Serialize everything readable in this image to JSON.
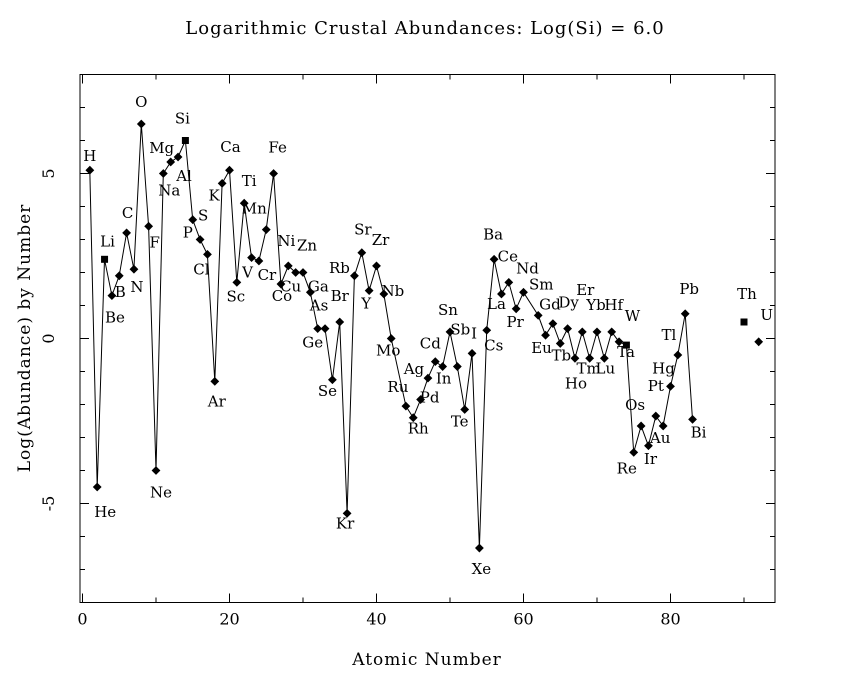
{
  "chart_data": {
    "type": "scatter",
    "title": "Logarithmic Crustal Abundances: Log(Si) = 6.0",
    "xlabel": "Atomic Number",
    "ylabel": "Log(Abundance) by Number",
    "xlim": [
      0,
      94
    ],
    "ylim": [
      -8,
      8
    ],
    "x_major_ticks": [
      0,
      20,
      40,
      60,
      80
    ],
    "x_minor_ticks": [
      10,
      30,
      50,
      70,
      90
    ],
    "y_major_ticks": [
      -5,
      0,
      5
    ],
    "y_minor_step": 1,
    "grid": false,
    "legend": "none",
    "marker_color": "#000000",
    "line_color": "#000000",
    "background": "#ffffff",
    "points": [
      {
        "sym": "H",
        "z": 1,
        "v": 5.1,
        "marker": "diamond",
        "label_offset": [
          0,
          -9
        ],
        "connected": true
      },
      {
        "sym": "He",
        "z": 2,
        "v": -4.5,
        "marker": "diamond",
        "label_offset": [
          8,
          30
        ],
        "connected": true
      },
      {
        "sym": "Li",
        "z": 3,
        "v": 2.4,
        "marker": "square",
        "label_offset": [
          3,
          -13
        ],
        "connected": true
      },
      {
        "sym": "Be",
        "z": 4,
        "v": 1.3,
        "marker": "diamond",
        "label_offset": [
          3,
          27
        ],
        "connected": true
      },
      {
        "sym": "B",
        "z": 5,
        "v": 1.9,
        "marker": "diamond",
        "label_offset": [
          1,
          21
        ],
        "connected": true
      },
      {
        "sym": "C",
        "z": 6,
        "v": 3.2,
        "marker": "diamond",
        "label_offset": [
          1,
          -15
        ],
        "connected": true
      },
      {
        "sym": "N",
        "z": 7,
        "v": 2.1,
        "marker": "diamond",
        "label_offset": [
          3,
          23
        ],
        "connected": true
      },
      {
        "sym": "O",
        "z": 8,
        "v": 6.5,
        "marker": "diamond",
        "label_offset": [
          0,
          -17
        ],
        "connected": true
      },
      {
        "sym": "F",
        "z": 9,
        "v": 3.4,
        "marker": "diamond",
        "label_offset": [
          6,
          21
        ],
        "connected": true
      },
      {
        "sym": "Ne",
        "z": 10,
        "v": -4.0,
        "marker": "diamond",
        "label_offset": [
          5,
          27
        ],
        "connected": true
      },
      {
        "sym": "Na",
        "z": 11,
        "v": 5.0,
        "marker": "diamond",
        "label_offset": [
          6,
          22
        ],
        "connected": true
      },
      {
        "sym": "Mg",
        "z": 12,
        "v": 5.35,
        "marker": "diamond",
        "label_offset": [
          -9,
          -9
        ],
        "connected": true
      },
      {
        "sym": "Al",
        "z": 13,
        "v": 5.5,
        "marker": "diamond",
        "label_offset": [
          6,
          24
        ],
        "connected": true
      },
      {
        "sym": "Si",
        "z": 14,
        "v": 6.0,
        "marker": "square",
        "label_offset": [
          -3,
          -17
        ],
        "connected": true
      },
      {
        "sym": "P",
        "z": 15,
        "v": 3.6,
        "marker": "diamond",
        "label_offset": [
          -5,
          18
        ],
        "connected": true
      },
      {
        "sym": "S",
        "z": 16,
        "v": 3.0,
        "marker": "diamond",
        "label_offset": [
          3,
          -19
        ],
        "connected": true
      },
      {
        "sym": "Cl",
        "z": 17,
        "v": 2.55,
        "marker": "diamond",
        "label_offset": [
          -6,
          20
        ],
        "connected": true
      },
      {
        "sym": "Ar",
        "z": 18,
        "v": -1.3,
        "marker": "diamond",
        "label_offset": [
          2,
          25
        ],
        "connected": true
      },
      {
        "sym": "K",
        "z": 19,
        "v": 4.7,
        "marker": "diamond",
        "label_offset": [
          -8,
          17
        ],
        "connected": true
      },
      {
        "sym": "Ca",
        "z": 20,
        "v": 5.1,
        "marker": "diamond",
        "label_offset": [
          1,
          -18
        ],
        "connected": true
      },
      {
        "sym": "Sc",
        "z": 21,
        "v": 1.7,
        "marker": "diamond",
        "label_offset": [
          -1,
          19
        ],
        "connected": true
      },
      {
        "sym": "Ti",
        "z": 22,
        "v": 4.1,
        "marker": "diamond",
        "label_offset": [
          5,
          -17
        ],
        "connected": true
      },
      {
        "sym": "V",
        "z": 23,
        "v": 2.45,
        "marker": "diamond",
        "label_offset": [
          -4,
          20
        ],
        "connected": true
      },
      {
        "sym": "Cr",
        "z": 24,
        "v": 2.35,
        "marker": "diamond",
        "label_offset": [
          8,
          19
        ],
        "connected": true
      },
      {
        "sym": "Mn",
        "z": 25,
        "v": 3.3,
        "marker": "diamond",
        "label_offset": [
          -12,
          -16
        ],
        "connected": true
      },
      {
        "sym": "Fe",
        "z": 26,
        "v": 5.0,
        "marker": "diamond",
        "label_offset": [
          4,
          -21
        ],
        "connected": true
      },
      {
        "sym": "Co",
        "z": 27,
        "v": 1.65,
        "marker": "diamond",
        "label_offset": [
          1,
          17
        ],
        "connected": true
      },
      {
        "sym": "Ni",
        "z": 28,
        "v": 2.2,
        "marker": "diamond",
        "label_offset": [
          -2,
          -20
        ],
        "connected": true
      },
      {
        "sym": "Cu",
        "z": 29,
        "v": 2.0,
        "marker": "diamond",
        "label_offset": [
          -5,
          19
        ],
        "connected": true
      },
      {
        "sym": "Zn",
        "z": 30,
        "v": 2.0,
        "marker": "diamond",
        "label_offset": [
          4,
          -22
        ],
        "connected": true
      },
      {
        "sym": "Ga",
        "z": 31,
        "v": 1.4,
        "marker": "diamond",
        "label_offset": [
          8,
          -1
        ],
        "connected": true
      },
      {
        "sym": "Ge",
        "z": 32,
        "v": 0.3,
        "marker": "diamond",
        "label_offset": [
          -5,
          19
        ],
        "connected": true
      },
      {
        "sym": "As",
        "z": 33,
        "v": 0.3,
        "marker": "diamond",
        "label_offset": [
          -6,
          -18
        ],
        "connected": true
      },
      {
        "sym": "Se",
        "z": 34,
        "v": -1.25,
        "marker": "diamond",
        "label_offset": [
          -5,
          16
        ],
        "connected": true
      },
      {
        "sym": "Br",
        "z": 35,
        "v": 0.5,
        "marker": "diamond",
        "label_offset": [
          0,
          -21
        ],
        "connected": true
      },
      {
        "sym": "Kr",
        "z": 36,
        "v": -5.3,
        "marker": "diamond",
        "label_offset": [
          -2,
          15
        ],
        "connected": true
      },
      {
        "sym": "Rb",
        "z": 37,
        "v": 1.9,
        "marker": "diamond",
        "label_offset": [
          -15,
          -3
        ],
        "connected": true
      },
      {
        "sym": "Sr",
        "z": 38,
        "v": 2.6,
        "marker": "diamond",
        "label_offset": [
          1,
          -18
        ],
        "connected": true
      },
      {
        "sym": "Y",
        "z": 39,
        "v": 1.45,
        "marker": "diamond",
        "label_offset": [
          -3,
          18
        ],
        "connected": true
      },
      {
        "sym": "Zr",
        "z": 40,
        "v": 2.2,
        "marker": "diamond",
        "label_offset": [
          4,
          -21
        ],
        "connected": true
      },
      {
        "sym": "Nb",
        "z": 41,
        "v": 1.35,
        "marker": "diamond",
        "label_offset": [
          9,
          2
        ],
        "connected": true
      },
      {
        "sym": "Mo",
        "z": 42,
        "v": 0.0,
        "marker": "diamond",
        "label_offset": [
          -3,
          17
        ],
        "connected": true
      },
      {
        "sym": "Ru",
        "z": 44,
        "v": -2.05,
        "marker": "diamond",
        "label_offset": [
          -8,
          -14
        ],
        "connected": true
      },
      {
        "sym": "Rh",
        "z": 45,
        "v": -2.4,
        "marker": "diamond",
        "label_offset": [
          5,
          16
        ],
        "connected": true
      },
      {
        "sym": "Pd",
        "z": 46,
        "v": -1.85,
        "marker": "diamond",
        "label_offset": [
          9,
          3
        ],
        "connected": true
      },
      {
        "sym": "Ag",
        "z": 47,
        "v": -1.2,
        "marker": "diamond",
        "label_offset": [
          -14,
          -4
        ],
        "connected": true
      },
      {
        "sym": "Cd",
        "z": 48,
        "v": -0.7,
        "marker": "diamond",
        "label_offset": [
          -5,
          -13
        ],
        "connected": true
      },
      {
        "sym": "In",
        "z": 49,
        "v": -0.85,
        "marker": "diamond",
        "label_offset": [
          1,
          17
        ],
        "connected": true
      },
      {
        "sym": "Sn",
        "z": 50,
        "v": 0.2,
        "marker": "diamond",
        "label_offset": [
          -2,
          -17
        ],
        "connected": true
      },
      {
        "sym": "Sb",
        "z": 51,
        "v": -0.85,
        "marker": "diamond",
        "label_offset": [
          3,
          -32
        ],
        "connected": true
      },
      {
        "sym": "Te",
        "z": 52,
        "v": -2.15,
        "marker": "diamond",
        "label_offset": [
          -5,
          17
        ],
        "connected": true
      },
      {
        "sym": "I",
        "z": 53,
        "v": -0.45,
        "marker": "diamond",
        "label_offset": [
          2,
          -15
        ],
        "connected": true
      },
      {
        "sym": "Xe",
        "z": 54,
        "v": -6.35,
        "marker": "diamond",
        "label_offset": [
          2,
          26
        ],
        "connected": true
      },
      {
        "sym": "Cs",
        "z": 55,
        "v": 0.25,
        "marker": "diamond",
        "label_offset": [
          7,
          20
        ],
        "connected": true
      },
      {
        "sym": "Ba",
        "z": 56,
        "v": 2.4,
        "marker": "diamond",
        "label_offset": [
          -1,
          -20
        ],
        "connected": true
      },
      {
        "sym": "La",
        "z": 57,
        "v": 1.35,
        "marker": "diamond",
        "label_offset": [
          -5,
          15
        ],
        "connected": true
      },
      {
        "sym": "Ce",
        "z": 58,
        "v": 1.7,
        "marker": "diamond",
        "label_offset": [
          -1,
          -21
        ],
        "connected": true
      },
      {
        "sym": "Pr",
        "z": 59,
        "v": 0.9,
        "marker": "diamond",
        "label_offset": [
          -1,
          18
        ],
        "connected": true
      },
      {
        "sym": "Nd",
        "z": 60,
        "v": 1.4,
        "marker": "diamond",
        "label_offset": [
          4,
          -19
        ],
        "connected": true
      },
      {
        "sym": "Sm",
        "z": 62,
        "v": 0.7,
        "marker": "diamond",
        "label_offset": [
          3,
          -26
        ],
        "connected": true
      },
      {
        "sym": "Eu",
        "z": 63,
        "v": 0.1,
        "marker": "diamond",
        "label_offset": [
          -4,
          18
        ],
        "connected": true
      },
      {
        "sym": "Gd",
        "z": 64,
        "v": 0.45,
        "marker": "diamond",
        "label_offset": [
          -3,
          -14
        ],
        "connected": true
      },
      {
        "sym": "Tb",
        "z": 65,
        "v": -0.15,
        "marker": "diamond",
        "label_offset": [
          1,
          17
        ],
        "connected": true
      },
      {
        "sym": "Dy",
        "z": 66,
        "v": 0.3,
        "marker": "diamond",
        "label_offset": [
          1,
          -21
        ],
        "connected": true
      },
      {
        "sym": "Ho",
        "z": 67,
        "v": -0.6,
        "marker": "diamond",
        "label_offset": [
          1,
          30
        ],
        "connected": true
      },
      {
        "sym": "Er",
        "z": 68,
        "v": 0.2,
        "marker": "diamond",
        "label_offset": [
          3,
          -37
        ],
        "connected": true
      },
      {
        "sym": "Tm",
        "z": 69,
        "v": -0.6,
        "marker": "diamond",
        "label_offset": [
          -1,
          15
        ],
        "connected": true
      },
      {
        "sym": "Yb",
        "z": 70,
        "v": 0.2,
        "marker": "diamond",
        "label_offset": [
          -1,
          -22
        ],
        "connected": true
      },
      {
        "sym": "Lu",
        "z": 71,
        "v": -0.6,
        "marker": "diamond",
        "label_offset": [
          1,
          15
        ],
        "connected": true
      },
      {
        "sym": "Hf",
        "z": 72,
        "v": 0.2,
        "marker": "diamond",
        "label_offset": [
          2,
          -22
        ],
        "connected": true
      },
      {
        "sym": "Ta",
        "z": 73,
        "v": -0.1,
        "marker": "diamond",
        "label_offset": [
          7,
          15
        ],
        "connected": true
      },
      {
        "sym": "W",
        "z": 74,
        "v": -0.2,
        "marker": "square",
        "label_offset": [
          6,
          -24
        ],
        "connected": true
      },
      {
        "sym": "Re",
        "z": 75,
        "v": -3.45,
        "marker": "diamond",
        "label_offset": [
          -7,
          21
        ],
        "connected": true
      },
      {
        "sym": "Os",
        "z": 76,
        "v": -2.65,
        "marker": "diamond",
        "label_offset": [
          -6,
          -16
        ],
        "connected": true
      },
      {
        "sym": "Ir",
        "z": 77,
        "v": -3.25,
        "marker": "diamond",
        "label_offset": [
          2,
          18
        ],
        "connected": true
      },
      {
        "sym": "Pt",
        "z": 78,
        "v": -2.35,
        "marker": "diamond",
        "label_offset": [
          0,
          -25
        ],
        "connected": true
      },
      {
        "sym": "Au",
        "z": 79,
        "v": -2.65,
        "marker": "diamond",
        "label_offset": [
          -3,
          17
        ],
        "connected": true
      },
      {
        "sym": "Hg",
        "z": 80,
        "v": -1.45,
        "marker": "diamond",
        "label_offset": [
          -7,
          -13
        ],
        "connected": true
      },
      {
        "sym": "Tl",
        "z": 81,
        "v": -0.5,
        "marker": "diamond",
        "label_offset": [
          -9,
          -15
        ],
        "connected": true
      },
      {
        "sym": "Pb",
        "z": 82,
        "v": 0.75,
        "marker": "diamond",
        "label_offset": [
          4,
          -20
        ],
        "connected": true
      },
      {
        "sym": "Bi",
        "z": 83,
        "v": -2.45,
        "marker": "diamond",
        "label_offset": [
          6,
          18
        ],
        "connected": true
      },
      {
        "sym": "Th",
        "z": 90,
        "v": 0.5,
        "marker": "square",
        "label_offset": [
          3,
          -23
        ],
        "connected": false
      },
      {
        "sym": "U",
        "z": 92,
        "v": -0.1,
        "marker": "diamond",
        "label_offset": [
          8,
          -22
        ],
        "connected": false
      }
    ]
  }
}
